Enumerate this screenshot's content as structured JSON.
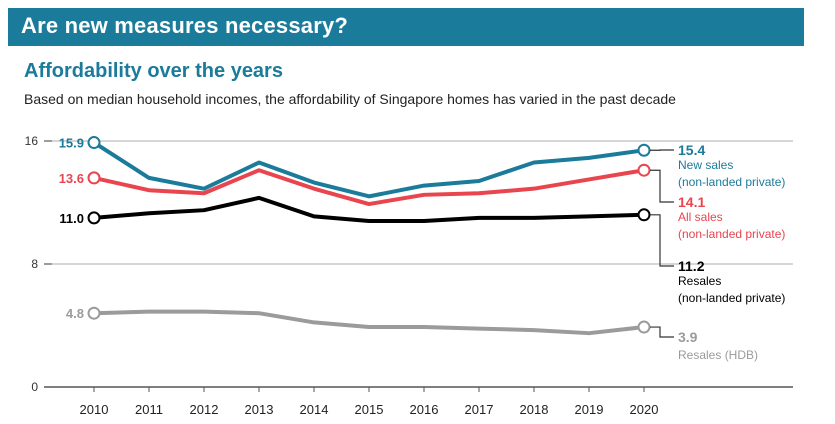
{
  "banner": {
    "title": "Are new measures necessary?"
  },
  "chart_data": {
    "type": "line",
    "title": "Affordability over the years",
    "subtitle": "Based on median household incomes, the affordability of Singapore homes has varied in the past decade",
    "xlabel": "",
    "ylabel": "",
    "x": [
      "2010",
      "2011",
      "2012",
      "2013",
      "2014",
      "2015",
      "2016",
      "2017",
      "2018",
      "2019",
      "2020"
    ],
    "yticks": [
      "16",
      "8",
      "0"
    ],
    "ylim": [
      0,
      16
    ],
    "grid": "horizontal",
    "series": [
      {
        "name": "New sales (non-landed private)",
        "legend_lines": [
          "New sales",
          "(non-landed private)"
        ],
        "color": "#1b7b9a",
        "start_label": "15.9",
        "end_label": "15.4",
        "values": [
          15.9,
          13.6,
          12.9,
          14.6,
          13.3,
          12.4,
          13.1,
          13.4,
          14.6,
          14.9,
          15.4
        ]
      },
      {
        "name": "All sales (non-landed private)",
        "legend_lines": [
          "All sales",
          "(non-landed private)"
        ],
        "color": "#e8454f",
        "start_label": "13.6",
        "end_label": "14.1",
        "values": [
          13.6,
          12.8,
          12.6,
          14.1,
          12.9,
          11.9,
          12.5,
          12.6,
          12.9,
          13.5,
          14.1
        ]
      },
      {
        "name": "Resales (non-landed private)",
        "legend_lines": [
          "Resales",
          "(non-landed private)"
        ],
        "color": "#000000",
        "start_label": "11.0",
        "end_label": "11.2",
        "values": [
          11.0,
          11.3,
          11.5,
          12.3,
          11.1,
          10.8,
          10.8,
          11.0,
          11.0,
          11.1,
          11.2
        ]
      },
      {
        "name": "Resales (HDB)",
        "legend_lines": [
          "Resales (HDB)"
        ],
        "color": "#9b9b9b",
        "start_label": "4.8",
        "end_label": "3.9",
        "values": [
          4.8,
          4.9,
          4.9,
          4.8,
          4.2,
          3.9,
          3.9,
          3.8,
          3.7,
          3.5,
          3.9
        ]
      }
    ]
  }
}
